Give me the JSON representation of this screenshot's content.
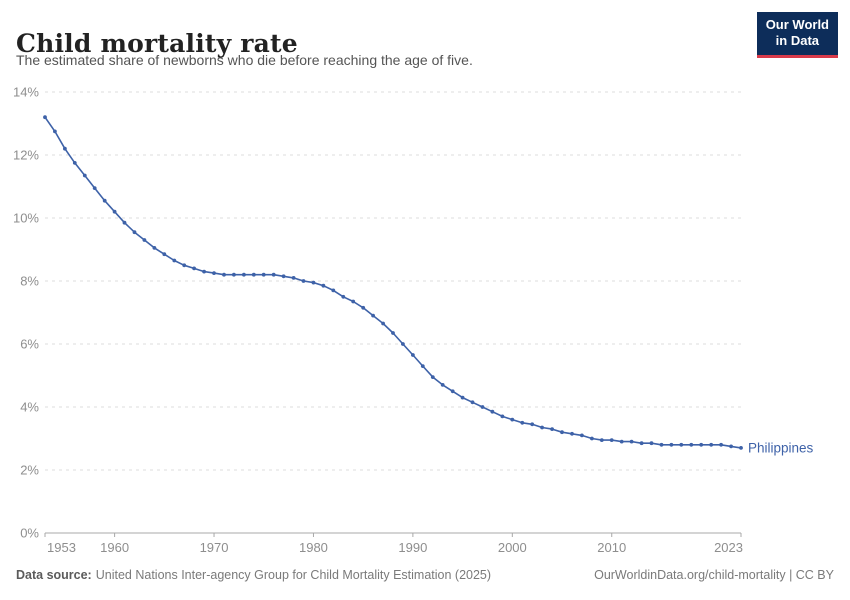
{
  "header": {
    "title": "Child mortality rate",
    "subtitle": "The estimated share of newborns who die before reaching the age of five.",
    "logo": {
      "line1": "Our World",
      "line2": "in Data"
    }
  },
  "chart_data": {
    "type": "line",
    "title": "Child mortality rate",
    "xlabel": "",
    "ylabel": "",
    "xlim": [
      1953,
      2023
    ],
    "ylim": [
      0,
      14
    ],
    "grid": "dashed-horizontal",
    "legend_position": "end-of-line-label",
    "y_ticks": [
      0,
      2,
      4,
      6,
      8,
      10,
      12,
      14
    ],
    "y_tick_suffix": "%",
    "x_ticks": [
      1953,
      1960,
      1970,
      1980,
      1990,
      2000,
      2010,
      2023
    ],
    "colors": {
      "line": "#3e62a8",
      "gridline": "#dcdcdc",
      "axis": "#a8a8a8",
      "tick_label": "#8e8e8e"
    },
    "series": [
      {
        "name": "Philippines",
        "color": "#3e62a8",
        "x": [
          1953,
          1954,
          1955,
          1956,
          1957,
          1958,
          1959,
          1960,
          1961,
          1962,
          1963,
          1964,
          1965,
          1966,
          1967,
          1968,
          1969,
          1970,
          1971,
          1972,
          1973,
          1974,
          1975,
          1976,
          1977,
          1978,
          1979,
          1980,
          1981,
          1982,
          1983,
          1984,
          1985,
          1986,
          1987,
          1988,
          1989,
          1990,
          1991,
          1992,
          1993,
          1994,
          1995,
          1996,
          1997,
          1998,
          1999,
          2000,
          2001,
          2002,
          2003,
          2004,
          2005,
          2006,
          2007,
          2008,
          2009,
          2010,
          2011,
          2012,
          2013,
          2014,
          2015,
          2016,
          2017,
          2018,
          2019,
          2020,
          2021,
          2022,
          2023
        ],
        "values": [
          13.2,
          12.75,
          12.2,
          11.75,
          11.35,
          10.95,
          10.55,
          10.2,
          9.85,
          9.55,
          9.3,
          9.05,
          8.85,
          8.65,
          8.5,
          8.4,
          8.3,
          8.25,
          8.2,
          8.2,
          8.2,
          8.2,
          8.2,
          8.2,
          8.15,
          8.1,
          8.0,
          7.95,
          7.85,
          7.7,
          7.5,
          7.35,
          7.15,
          6.9,
          6.65,
          6.35,
          6.0,
          5.65,
          5.3,
          4.95,
          4.7,
          4.5,
          4.3,
          4.15,
          4.0,
          3.85,
          3.7,
          3.6,
          3.5,
          3.45,
          3.35,
          3.3,
          3.2,
          3.15,
          3.1,
          3.0,
          2.95,
          2.95,
          2.9,
          2.9,
          2.85,
          2.85,
          2.8,
          2.8,
          2.8,
          2.8,
          2.8,
          2.8,
          2.8,
          2.75,
          2.7
        ]
      }
    ]
  },
  "footer": {
    "source_label": "Data source:",
    "source_text": "United Nations Inter-agency Group for Child Mortality Estimation (2025)",
    "link_text": "OurWorldinData.org/child-mortality | CC BY"
  }
}
